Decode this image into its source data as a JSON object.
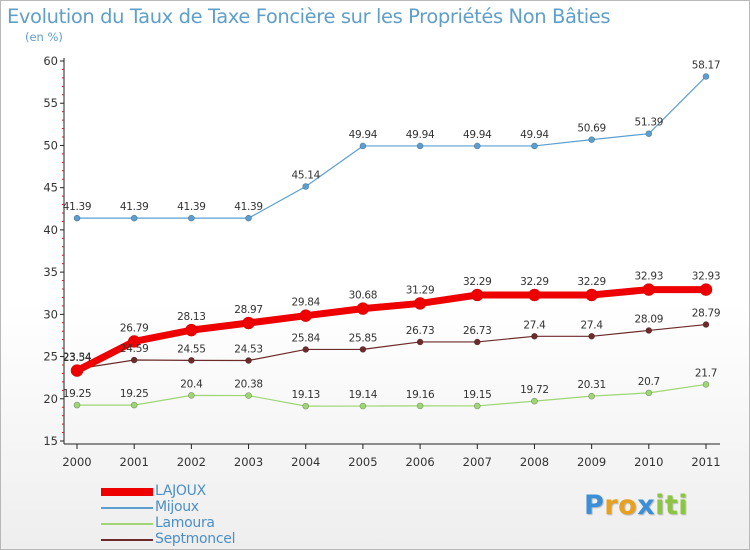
{
  "title": "Evolution du Taux de Taxe Foncière sur les Propriétés Non Bâties",
  "subtitle": "(en %)",
  "chart_data": {
    "type": "line",
    "x": [
      "2000",
      "2001",
      "2002",
      "2003",
      "2004",
      "2005",
      "2006",
      "2007",
      "2008",
      "2009",
      "2010",
      "2011"
    ],
    "ylim": [
      15,
      60
    ],
    "yticks": [
      "15",
      "20",
      "25",
      "30",
      "35",
      "40",
      "45",
      "50",
      "55",
      "60"
    ],
    "legend_position": "bottom-left",
    "series": [
      {
        "name": "LAJOUX",
        "color": "#ee0000",
        "values": [
          23.34,
          26.79,
          28.13,
          28.97,
          29.84,
          30.68,
          31.29,
          32.29,
          32.29,
          32.29,
          32.93,
          32.93
        ],
        "labels": [
          "23.34",
          "26.79",
          "28.13",
          "28.97",
          "29.84",
          "30.68",
          "31.29",
          "32.29",
          "32.29",
          "32.29",
          "32.93",
          "32.93"
        ]
      },
      {
        "name": "Mijoux",
        "color": "#5b9fd2",
        "values": [
          41.39,
          41.39,
          41.39,
          41.39,
          45.14,
          49.94,
          49.94,
          49.94,
          49.94,
          50.69,
          51.39,
          58.17
        ],
        "labels": [
          "41.39",
          "41.39",
          "41.39",
          "41.39",
          "45.14",
          "49.94",
          "49.94",
          "49.94",
          "49.94",
          "50.69",
          "51.39",
          "58.17"
        ]
      },
      {
        "name": "Lamoura",
        "color": "#9ed674",
        "values": [
          19.25,
          19.25,
          20.4,
          20.38,
          19.13,
          19.14,
          19.16,
          19.15,
          19.72,
          20.31,
          20.7,
          21.7
        ],
        "labels": [
          "19.25",
          "19.25",
          "20.4",
          "20.38",
          "19.13",
          "19.14",
          "19.16",
          "19.15",
          "19.72",
          "20.31",
          "20.7",
          "21.7"
        ]
      },
      {
        "name": "Septmoncel",
        "color": "#6e2a2a",
        "values": [
          23.54,
          24.59,
          24.55,
          24.53,
          25.84,
          25.85,
          26.73,
          26.73,
          27.4,
          27.4,
          28.09,
          28.79
        ],
        "labels": [
          "23.54",
          "24.59",
          "24.55",
          "24.53",
          "25.84",
          "25.85",
          "26.73",
          "26.73",
          "27.4",
          "27.4",
          "28.09",
          "28.79"
        ]
      }
    ]
  },
  "logo": {
    "letters": [
      "P",
      "r",
      "o",
      "x",
      "i",
      "t",
      "i"
    ],
    "colors": [
      "#3b8ed8",
      "#e8a020",
      "#e8a020",
      "#3b8ed8",
      "#8cc63f",
      "#8cc63f",
      "#8cc63f"
    ]
  }
}
